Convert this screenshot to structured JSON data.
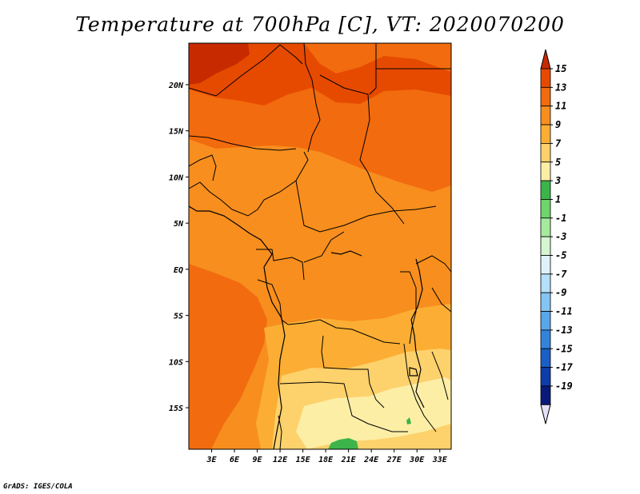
{
  "title": "Temperature at 700hPa [C], VT: 2020070200",
  "credit": "GrADS: IGES/COLA",
  "map": {
    "lon_range": [
      0,
      34.5
    ],
    "lat_range": [
      -19.5,
      24.5
    ],
    "lon_ticks": [
      3,
      6,
      9,
      12,
      15,
      18,
      21,
      24,
      27,
      30,
      33
    ],
    "lon_tick_labels": [
      "3E",
      "6E",
      "9E",
      "12E",
      "15E",
      "18E",
      "21E",
      "24E",
      "27E",
      "30E",
      "33E"
    ],
    "lat_ticks": [
      20,
      15,
      10,
      5,
      0,
      -5,
      -10,
      -15
    ],
    "lat_tick_labels": [
      "20N",
      "15N",
      "10N",
      "5N",
      "EQ",
      "5S",
      "10S",
      "15S"
    ]
  },
  "colorbar": {
    "labels": [
      "15",
      "13",
      "11",
      "9",
      "7",
      "5",
      "3",
      "1",
      "-1",
      "-3",
      "-5",
      "-7",
      "-9",
      "-11",
      "-13",
      "-15",
      "-17",
      "-19"
    ],
    "colors": [
      "#c82a00",
      "#e64a00",
      "#f26b0e",
      "#f78e1e",
      "#fbae33",
      "#fdd16b",
      "#fdeea6",
      "#3cb44a",
      "#6dd56b",
      "#a6eb9d",
      "#d5f6d0",
      "#dff2fc",
      "#b3e0fb",
      "#84c5f3",
      "#58a7e8",
      "#3383db",
      "#1a5fc8",
      "#0d3da8",
      "#0a1a7a",
      "#e6e0f7"
    ]
  }
}
